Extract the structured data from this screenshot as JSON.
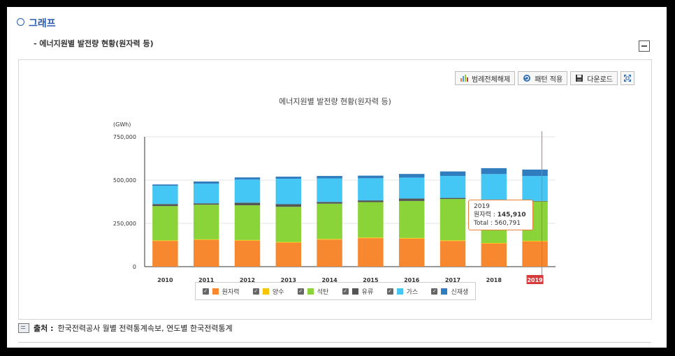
{
  "section": {
    "title": "그래프",
    "subtitle": "- 에너지원별 발전량 현황(원자력 등)"
  },
  "toolbar": {
    "legend_all_off": "범례전체해제",
    "apply_pattern": "패턴 적용",
    "download": "다운로드"
  },
  "tooltip": {
    "year": "2019",
    "series_label": "원자력 : ",
    "series_value": "145,910",
    "total_label": "Total : ",
    "total_value": "560,791"
  },
  "source": {
    "label": "출처 :",
    "text": "한국전력공사 월별 전력통계속보, 연도별 한국전력통계"
  },
  "chart_data": {
    "type": "bar",
    "stacked": true,
    "title": "에너지원별 발전량 현황(원자력 등)",
    "unit": "(GWh)",
    "ylim": [
      0,
      750000
    ],
    "yticks": [
      "0",
      "250,000",
      "500,000",
      "750,000"
    ],
    "categories": [
      "2010",
      "2011",
      "2012",
      "2013",
      "2014",
      "2015",
      "2016",
      "2017",
      "2018",
      "2019"
    ],
    "highlight_category": "2019",
    "series": [
      {
        "name": "원자력",
        "color": "#f7882f",
        "values": [
          148596,
          154723,
          150327,
          138784,
          156407,
          164762,
          161995,
          148427,
          133505,
          145910
        ]
      },
      {
        "name": "양수",
        "color": "#f7c500",
        "values": [
          3271,
          3112,
          3479,
          3600,
          3700,
          3700,
          3700,
          3700,
          3500,
          3400
        ]
      },
      {
        "name": "석탄",
        "color": "#8ad43a",
        "values": [
          197917,
          200104,
          200702,
          203446,
          203765,
          204230,
          213803,
          238799,
          238967,
          227384
        ]
      },
      {
        "name": "유류",
        "color": "#555555",
        "values": [
          12000,
          8000,
          15000,
          15000,
          10000,
          10000,
          14000,
          6000,
          6000,
          3000
        ]
      },
      {
        "name": "가스",
        "color": "#45c7f5",
        "values": [
          105000,
          113000,
          134000,
          147000,
          136000,
          128000,
          121000,
          127000,
          153000,
          144000
        ]
      },
      {
        "name": "신재생",
        "color": "#2f7dbe",
        "values": [
          8000,
          13000,
          12000,
          12000,
          14000,
          15000,
          21000,
          26000,
          34000,
          37097
        ]
      }
    ],
    "grid": true,
    "legend_position": "bottom"
  }
}
